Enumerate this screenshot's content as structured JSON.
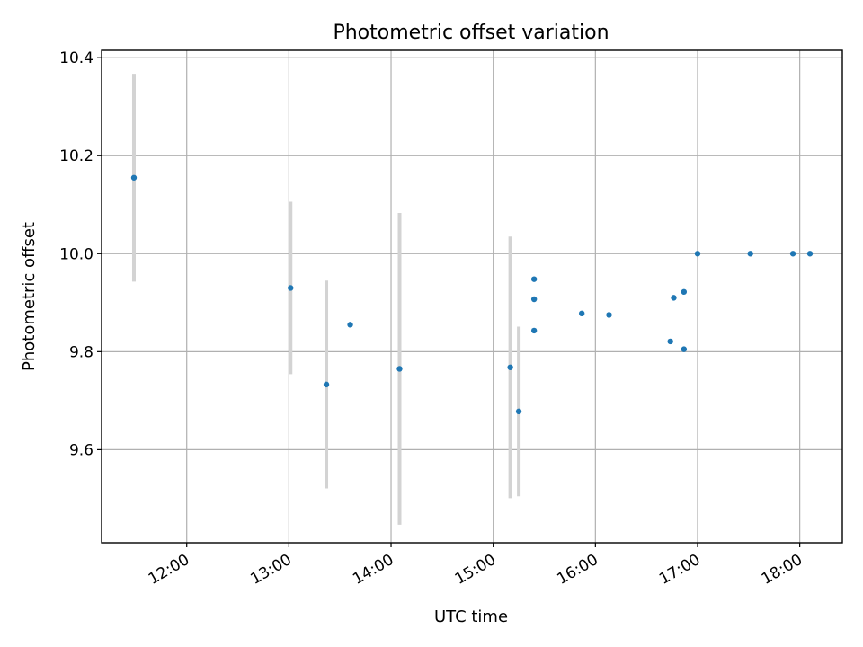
{
  "chart_data": {
    "type": "scatter",
    "title": "Photometric offset variation",
    "xlabel": "UTC time",
    "ylabel": "Photometric offset",
    "x_axis_kind": "time-of-day",
    "xlim": [
      "11:10",
      "18:25"
    ],
    "ylim": [
      9.41,
      10.415
    ],
    "x_ticks": [
      "12:00",
      "13:00",
      "14:00",
      "15:00",
      "16:00",
      "17:00",
      "18:00"
    ],
    "y_ticks": [
      "9.6",
      "9.8",
      "10.0",
      "10.2",
      "10.4"
    ],
    "grid": true,
    "legend": "none",
    "colors": {
      "points": "#1f77b4",
      "error_bars": "#d3d3d3"
    },
    "points": [
      {
        "x": "11:29",
        "y": 10.155,
        "err": 0.212
      },
      {
        "x": "13:01",
        "y": 9.93,
        "err": 0.176
      },
      {
        "x": "13:22",
        "y": 9.733,
        "err": 0.212
      },
      {
        "x": "13:36",
        "y": 9.855
      },
      {
        "x": "14:05",
        "y": 9.765,
        "err": 0.318
      },
      {
        "x": "15:10",
        "y": 9.768,
        "err": 0.267
      },
      {
        "x": "15:15",
        "y": 9.678,
        "err": 0.173
      },
      {
        "x": "15:24",
        "y": 9.948
      },
      {
        "x": "15:24",
        "y": 9.907
      },
      {
        "x": "15:24",
        "y": 9.843
      },
      {
        "x": "15:52",
        "y": 9.878
      },
      {
        "x": "16:08",
        "y": 9.875
      },
      {
        "x": "16:44",
        "y": 9.821
      },
      {
        "x": "16:46",
        "y": 9.91
      },
      {
        "x": "16:52",
        "y": 9.922
      },
      {
        "x": "16:52",
        "y": 9.805
      },
      {
        "x": "17:00",
        "y": 10.0
      },
      {
        "x": "17:31",
        "y": 10.0
      },
      {
        "x": "17:56",
        "y": 10.0
      },
      {
        "x": "18:06",
        "y": 10.0
      }
    ]
  }
}
